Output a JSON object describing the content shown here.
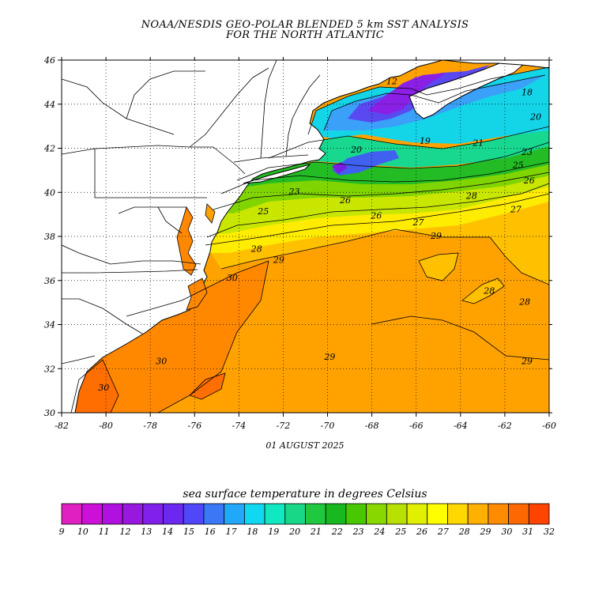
{
  "header": {
    "title_line1": "NOAA/NESDIS GEO-POLAR BLENDED 5 km SST ANALYSIS",
    "title_line2": "FOR THE NORTH ATLANTIC"
  },
  "map": {
    "date": "01 AUGUST 2025",
    "lon_range": [
      -82,
      -60
    ],
    "lat_range": [
      30,
      46
    ],
    "x_ticks": [
      "-82",
      "-80",
      "-78",
      "-76",
      "-74",
      "-72",
      "-70",
      "-68",
      "-66",
      "-64",
      "-62",
      "-60"
    ],
    "y_ticks": [
      "30",
      "32",
      "34",
      "36",
      "38",
      "40",
      "42",
      "44",
      "46"
    ],
    "grid": true,
    "contour_labels": [
      {
        "text": "30",
        "lon": -80.1,
        "lat": 31.0
      },
      {
        "text": "30",
        "lon": -77.5,
        "lat": 32.2
      },
      {
        "text": "30",
        "lon": -74.3,
        "lat": 36.0
      },
      {
        "text": "28",
        "lon": -73.2,
        "lat": 37.3
      },
      {
        "text": "29",
        "lon": -72.2,
        "lat": 36.8
      },
      {
        "text": "25",
        "lon": -72.9,
        "lat": 39.0
      },
      {
        "text": "23",
        "lon": -71.5,
        "lat": 39.9
      },
      {
        "text": "26",
        "lon": -69.2,
        "lat": 39.5
      },
      {
        "text": "26",
        "lon": -67.8,
        "lat": 38.8
      },
      {
        "text": "27",
        "lon": -65.9,
        "lat": 38.5
      },
      {
        "text": "29",
        "lon": -65.1,
        "lat": 37.9
      },
      {
        "text": "28",
        "lon": -63.5,
        "lat": 39.7
      },
      {
        "text": "27",
        "lon": -61.5,
        "lat": 39.1
      },
      {
        "text": "26",
        "lon": -60.9,
        "lat": 40.4
      },
      {
        "text": "28",
        "lon": -62.7,
        "lat": 35.4
      },
      {
        "text": "28",
        "lon": -61.1,
        "lat": 34.9
      },
      {
        "text": "29",
        "lon": -69.9,
        "lat": 32.4
      },
      {
        "text": "29",
        "lon": -61.0,
        "lat": 32.2
      },
      {
        "text": "20",
        "lon": -68.7,
        "lat": 41.8
      },
      {
        "text": "19",
        "lon": -65.6,
        "lat": 42.2
      },
      {
        "text": "21",
        "lon": -63.2,
        "lat": 42.1
      },
      {
        "text": "25",
        "lon": -61.4,
        "lat": 41.1
      },
      {
        "text": "23",
        "lon": -61.0,
        "lat": 41.7
      },
      {
        "text": "18",
        "lon": -61.0,
        "lat": 44.4
      },
      {
        "text": "20",
        "lon": -60.6,
        "lat": 43.3
      },
      {
        "text": "12",
        "lon": -67.1,
        "lat": 44.9
      }
    ]
  },
  "colorbar": {
    "title": "sea surface temperature in degrees Celsius",
    "labels": [
      "9",
      "10",
      "11",
      "12",
      "13",
      "14",
      "15",
      "16",
      "17",
      "18",
      "19",
      "20",
      "21",
      "22",
      "23",
      "24",
      "25",
      "26",
      "27",
      "28",
      "29",
      "30",
      "31",
      "32"
    ],
    "colors": [
      "#e020c0",
      "#cc10d8",
      "#b010e0",
      "#9818e0",
      "#8020ea",
      "#6a28f0",
      "#5048f8",
      "#3a78f8",
      "#22a8f8",
      "#10d8f0",
      "#10e8c0",
      "#18d888",
      "#20c840",
      "#18b820",
      "#48c800",
      "#88d800",
      "#b8e000",
      "#e0f000",
      "#ffff00",
      "#ffd800",
      "#ffb000",
      "#ff8c00",
      "#ff6800",
      "#ff4400"
    ]
  },
  "legend_colors": {
    "ocean_cold": "#7a1ee0",
    "ocean_warm": "#ff9a00",
    "land": "#ffffff",
    "coast": "#000000"
  }
}
